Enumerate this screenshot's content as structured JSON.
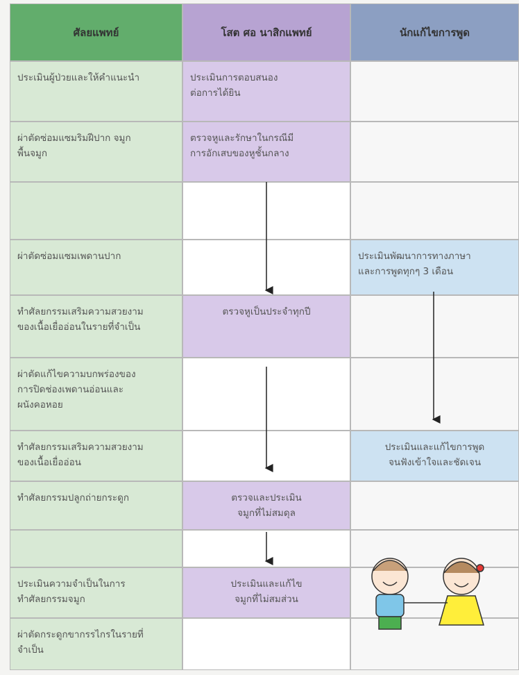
{
  "header": [
    "ศัลยแพทย์",
    "โสต ศอ นาสิกแพทย์",
    "นักแก้ไขการพูด"
  ],
  "rows": [
    [
      [
        "ประเมินผู้ป่วยและให้คำแนะนำ"
      ],
      [
        "ประเมินการตอบสนอง",
        "ต่อการได้ยิน"
      ],
      []
    ],
    [
      [
        "ผ่าตัดซ่อมแซมริมฝีปาก จมูก",
        "พื้นจมูก"
      ],
      [
        "ตรวจหูและรักษาในกรณีมี",
        "การอักเสบของหูชั้นกลาง"
      ],
      []
    ],
    [
      [],
      [],
      []
    ],
    [
      [
        "ผ่าตัดซ่อมแซมเพดานปาก"
      ],
      [],
      [
        "ประเมินพัฒนาการทางภาษา",
        "และการพูดทุกๆ 3 เดือน"
      ]
    ],
    [
      [
        "ทำศัลยกรรมเสริมความสวยงาม",
        "ของเนื้อเยื่ออ่อนในรายที่จำเป็น"
      ],
      [
        "ตรวจหูเป็นประจำทุกปี"
      ],
      []
    ],
    [
      [
        "ผ่าตัดแก้ไขความบกพร่องของ",
        "การปิดช่องเพดานอ่อนและ",
        "ผนังคอหอย"
      ],
      [],
      []
    ],
    [
      [
        "ทำศัลยกรรมเสริมความสวยงาม",
        "ของเนื้อเยื่ออ่อน"
      ],
      [],
      [
        "ประเมินและแก้ไขการพูด",
        "จนฟังเข้าใจและชัดเจน"
      ]
    ],
    [
      [
        "ทำศัลยกรรมปลูกถ่ายกระดูก"
      ],
      [
        "ตรวจและประเมิน",
        "จมูกที่ไม่สมดุล"
      ],
      []
    ],
    [
      [],
      [],
      []
    ],
    [
      [
        "ประเมินความจำเป็นในการ",
        "ทำศัลยกรรมจมูก"
      ],
      [
        "ประเมินและแก้ไข",
        "จมูกที่ไม่สมส่วน"
      ],
      []
    ],
    [
      [
        "ผ่าตัดกระดูกขากรรไกรในรายที่",
        "จำเป็น"
      ],
      [],
      []
    ]
  ]
}
